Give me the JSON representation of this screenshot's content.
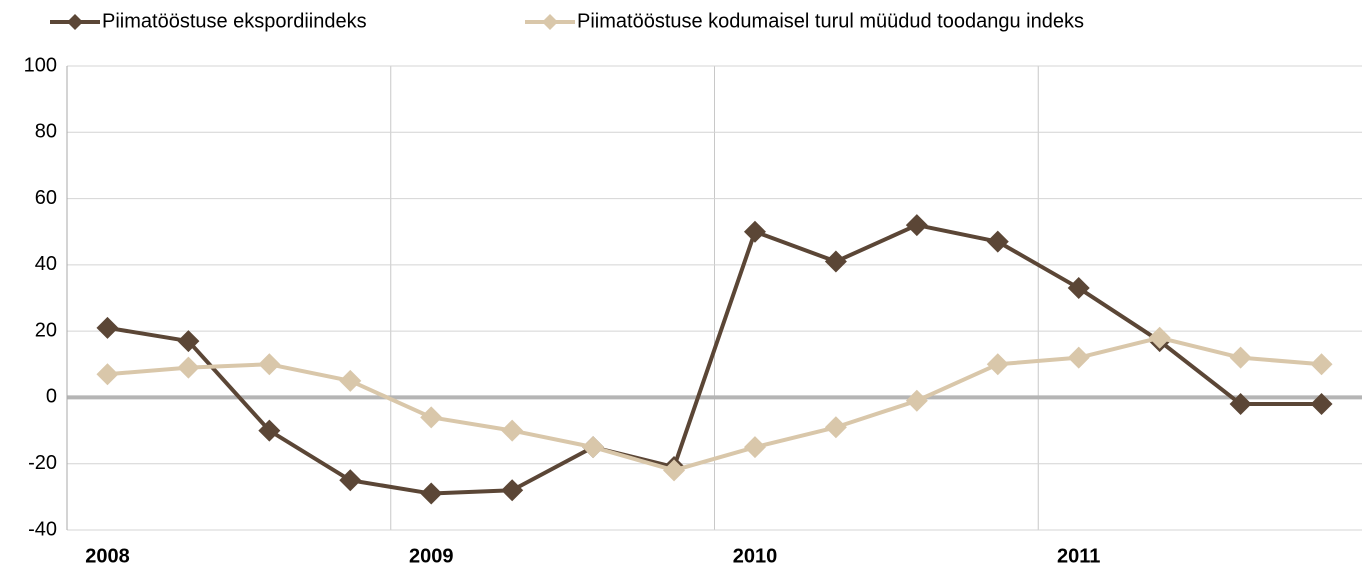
{
  "chart_data": {
    "type": "line",
    "categories": [
      "2008",
      null,
      null,
      null,
      "2009",
      null,
      null,
      null,
      "2010",
      null,
      null,
      null,
      "2011",
      null,
      null,
      null
    ],
    "series": [
      {
        "name": "Piimatööstuse ekspordiindeks",
        "color": "#5b4636",
        "values": [
          21,
          17,
          -10,
          -25,
          -29,
          -28,
          -15,
          -21,
          50,
          41,
          52,
          47,
          33,
          17,
          -2,
          -2
        ]
      },
      {
        "name": "Piimatööstuse kodumaisel turul müüdud toodangu indeks",
        "color": "#d9c7aa",
        "values": [
          7,
          9,
          10,
          5,
          -6,
          -10,
          -15,
          -22,
          -15,
          -9,
          -1,
          10,
          12,
          18,
          12,
          10
        ]
      }
    ],
    "ylim": [
      -40,
      100
    ],
    "yticks": [
      -40,
      -20,
      0,
      20,
      40,
      60,
      80,
      100
    ],
    "grid": true
  }
}
